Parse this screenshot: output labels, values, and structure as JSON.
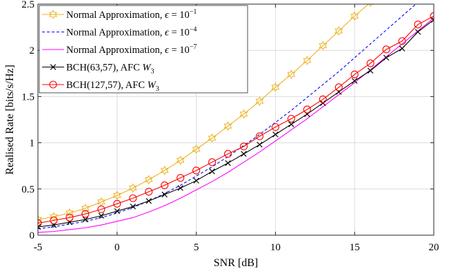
{
  "chart_data": {
    "type": "line",
    "xlabel": "SNR [dB]",
    "ylabel": "Realised Rate [bits/s/Hz]",
    "xlim": [
      -5,
      20
    ],
    "ylim": [
      0,
      2.5
    ],
    "xticks": [
      -5,
      0,
      5,
      10,
      15,
      20
    ],
    "xtick_labels": [
      "-5",
      "0",
      "5",
      "10",
      "15",
      "20"
    ],
    "yticks": [
      0,
      0.5,
      1,
      1.5,
      2,
      2.5
    ],
    "ytick_labels": [
      "0",
      "0.5",
      "1",
      "1.5",
      "2",
      "2.5"
    ],
    "grid": true,
    "legend_position": "top-left",
    "series": [
      {
        "name": "Normal Approximation, ϵ = 10^-1",
        "legend": {
          "text": "Normal Approximation, ",
          "sym": "ϵ",
          "eq": " = 10",
          "sup": "−1"
        },
        "color": "#EDB120",
        "line_style": "solid",
        "marker": "hexagram",
        "x": [
          -5,
          -4,
          -3,
          -2,
          -1,
          0,
          1,
          2,
          3,
          4,
          5,
          6,
          7,
          8,
          9,
          10,
          11,
          12,
          13,
          14,
          15,
          16
        ],
        "y": [
          0.17,
          0.2,
          0.24,
          0.29,
          0.36,
          0.43,
          0.51,
          0.6,
          0.7,
          0.81,
          0.93,
          1.05,
          1.18,
          1.31,
          1.45,
          1.6,
          1.74,
          1.89,
          2.05,
          2.21,
          2.37,
          2.52
        ]
      },
      {
        "name": "Normal Approximation, ϵ = 10^-4",
        "legend": {
          "text": "Normal Approximation, ",
          "sym": "ϵ",
          "eq": " = 10",
          "sup": "−4"
        },
        "color": "#0000FF",
        "line_style": "dashed",
        "marker": "none",
        "x": [
          -5,
          -4,
          -3,
          -2,
          -1,
          0,
          1,
          2,
          3,
          4,
          5,
          6,
          7,
          8,
          9,
          10,
          11,
          12,
          13,
          14,
          15,
          16,
          17,
          18,
          19,
          20
        ],
        "y": [
          0.07,
          0.09,
          0.12,
          0.15,
          0.19,
          0.24,
          0.3,
          0.37,
          0.45,
          0.54,
          0.64,
          0.74,
          0.85,
          0.97,
          1.09,
          1.22,
          1.35,
          1.49,
          1.63,
          1.77,
          1.92,
          2.07,
          2.22,
          2.37,
          2.52,
          2.67
        ]
      },
      {
        "name": "Normal Approximation, ϵ = 10^-7",
        "legend": {
          "text": "Normal Approximation, ",
          "sym": "ϵ",
          "eq": " = 10",
          "sup": "−7"
        },
        "color": "#FF00FF",
        "line_style": "solid",
        "marker": "none",
        "x": [
          -5,
          -4,
          -3,
          -2,
          -1,
          0,
          1,
          2,
          3,
          4,
          5,
          6,
          7,
          8,
          9,
          10,
          11,
          12,
          13,
          14,
          15,
          16,
          17,
          18,
          19,
          20
        ],
        "y": [
          0.03,
          0.04,
          0.06,
          0.08,
          0.11,
          0.15,
          0.19,
          0.25,
          0.32,
          0.4,
          0.49,
          0.58,
          0.68,
          0.79,
          0.9,
          1.02,
          1.14,
          1.26,
          1.39,
          1.52,
          1.65,
          1.79,
          1.93,
          2.07,
          2.21,
          2.35
        ]
      },
      {
        "name": "BCH(63,57), AFC W3",
        "legend": {
          "text": "BCH(63,57), AFC ",
          "sym": "W",
          "sub": "3"
        },
        "color": "#000000",
        "line_style": "solid",
        "marker": "x",
        "x": [
          -5,
          -4,
          -3,
          -2,
          -1,
          0,
          1,
          2,
          3,
          4,
          5,
          6,
          7,
          8,
          9,
          10,
          11,
          12,
          13,
          14,
          15,
          16,
          17,
          18,
          19,
          20
        ],
        "y": [
          0.09,
          0.11,
          0.14,
          0.17,
          0.21,
          0.26,
          0.31,
          0.37,
          0.44,
          0.51,
          0.59,
          0.69,
          0.78,
          0.88,
          0.98,
          1.09,
          1.2,
          1.31,
          1.43,
          1.55,
          1.67,
          1.78,
          1.92,
          2.02,
          2.2,
          2.33
        ]
      },
      {
        "name": "BCH(127,57), AFC W3",
        "legend": {
          "text": "BCH(127,57), AFC ",
          "sym": "W",
          "sub": "3"
        },
        "color": "#FF0000",
        "line_style": "solid",
        "marker": "circle",
        "x": [
          -5,
          -4,
          -3,
          -2,
          -1,
          0,
          1,
          2,
          3,
          4,
          5,
          6,
          7,
          8,
          9,
          10,
          11,
          12,
          13,
          14,
          15,
          16,
          17,
          18,
          19,
          20
        ],
        "y": [
          0.13,
          0.16,
          0.19,
          0.23,
          0.28,
          0.34,
          0.4,
          0.47,
          0.54,
          0.62,
          0.7,
          0.79,
          0.88,
          0.96,
          1.07,
          1.17,
          1.26,
          1.36,
          1.47,
          1.6,
          1.74,
          1.86,
          2.01,
          2.1,
          2.28,
          2.37
        ]
      }
    ]
  }
}
